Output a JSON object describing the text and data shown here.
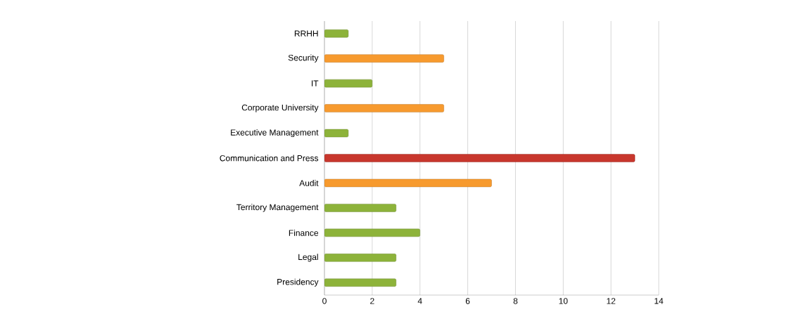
{
  "chart_data": {
    "type": "bar",
    "orientation": "horizontal",
    "categories": [
      "RRHH",
      "Security",
      "IT",
      "Corporate University",
      "Executive Management",
      "Communication and Press",
      "Audit",
      "Territory Management",
      "Finance",
      "Legal",
      "Presidency"
    ],
    "values": [
      1,
      5,
      2,
      5,
      1,
      13,
      7,
      3,
      4,
      3,
      3
    ],
    "colors": [
      "#8db33a",
      "#f79a2e",
      "#8db33a",
      "#f79a2e",
      "#8db33a",
      "#c8372d",
      "#f79a2e",
      "#8db33a",
      "#8db33a",
      "#8db33a",
      "#8db33a"
    ],
    "xlim": [
      0,
      14
    ],
    "xticks": [
      0,
      2,
      4,
      6,
      8,
      10,
      12,
      14
    ],
    "grid": "x"
  }
}
